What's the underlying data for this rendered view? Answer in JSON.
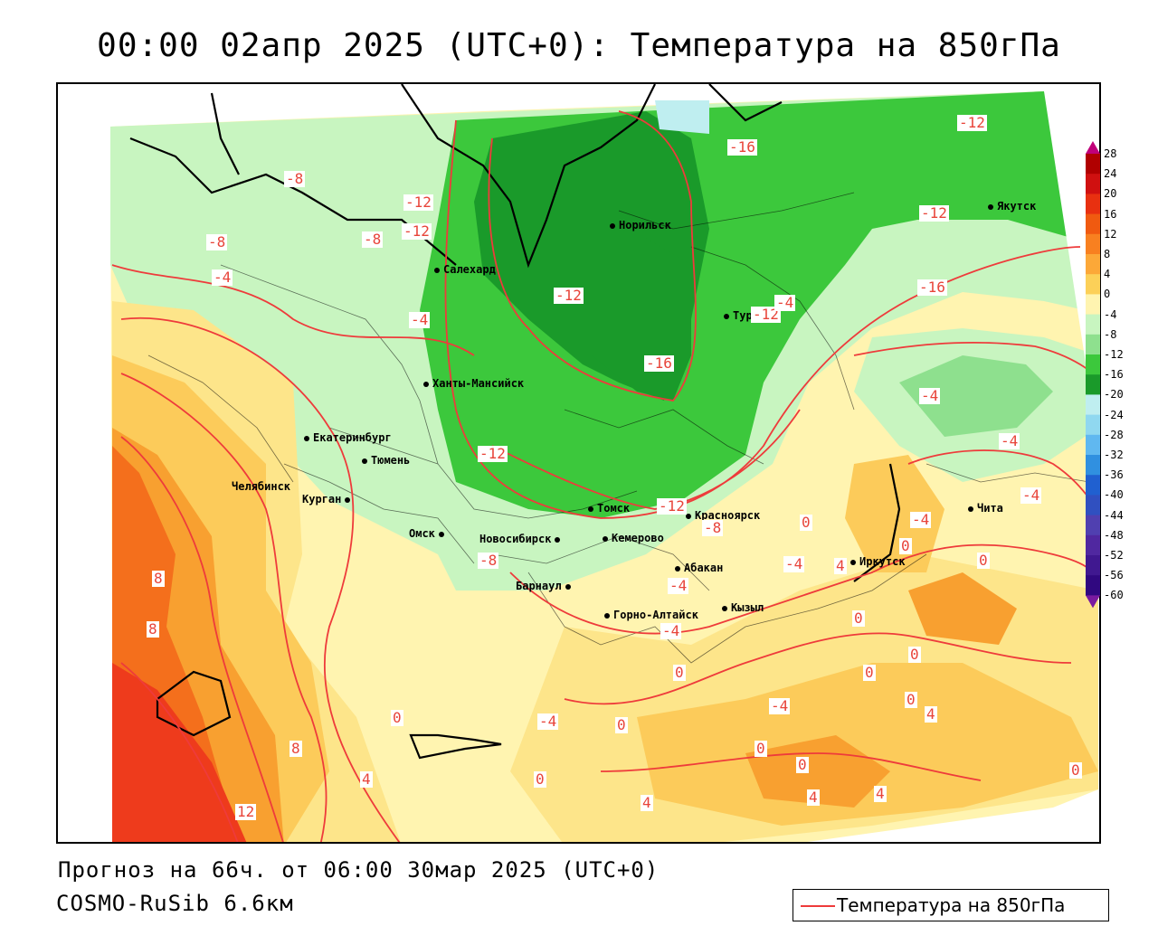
{
  "title": "00:00 02апр 2025 (UTC+0): Температура на 850гПа",
  "forecast_line": "Прогноз на 66ч. от 06:00 30мар 2025 (UTC+0)",
  "model_line": "COSMO-RuSib 6.6км",
  "legend_label": "Температура на 850гПа",
  "colors": {
    "contour": "#ee3b3b",
    "deep_green": "#1a9a2a",
    "green": "#3cc83c",
    "light_green": "#8ee08e",
    "pale_green": "#c8f5c0",
    "pale_yellow": "#fff4b0",
    "yellow": "#fde58a",
    "light_orange": "#fccb5a",
    "orange": "#f8a030",
    "dark_orange": "#f46f1c",
    "red": "#ee3b1c"
  },
  "colorbar": {
    "ticks": [
      "28",
      "24",
      "20",
      "16",
      "12",
      "8",
      "4",
      "0",
      "-4",
      "-8",
      "-12",
      "-16",
      "-20",
      "-24",
      "-28",
      "-32",
      "-36",
      "-40",
      "-44",
      "-48",
      "-52",
      "-56",
      "-60"
    ],
    "colors": [
      "#c0007a",
      "#b00000",
      "#d01010",
      "#e83010",
      "#f05a10",
      "#f88020",
      "#fca838",
      "#fcd058",
      "#fff4b0",
      "#c8f5c0",
      "#8ee08e",
      "#3cc83c",
      "#1a9a2a",
      "#bfeef0",
      "#90d8f0",
      "#60b8f0",
      "#3090e0",
      "#2060d0",
      "#3050c0",
      "#5040b0",
      "#5028a0",
      "#401890",
      "#300880",
      "#7a1aa0"
    ]
  },
  "cities": [
    {
      "name": "Норильск"
    },
    {
      "name": "Якутск"
    },
    {
      "name": "Салехард"
    },
    {
      "name": "Тура"
    },
    {
      "name": "Ханты-Мансийск"
    },
    {
      "name": "Екатеринбург"
    },
    {
      "name": "Тюмень"
    },
    {
      "name": "Челябинск"
    },
    {
      "name": "Курган"
    },
    {
      "name": "Омск"
    },
    {
      "name": "Новосибирск"
    },
    {
      "name": "Томск"
    },
    {
      "name": "Кемерово"
    },
    {
      "name": "Красноярск"
    },
    {
      "name": "Абакан"
    },
    {
      "name": "Барнаул"
    },
    {
      "name": "Горно-Алтайск"
    },
    {
      "name": "Кызыл"
    },
    {
      "name": "Иркутск"
    },
    {
      "name": "Чита"
    }
  ],
  "contour_labels": [
    "-12",
    "-16",
    "-12",
    "-8",
    "-12",
    "-12",
    "-8",
    "-12",
    "-4",
    "-8",
    "-4",
    "-16",
    "-12",
    "-4",
    "-16",
    "-8",
    "-4",
    "-12",
    "-4",
    "-8",
    "-12",
    "-4",
    "-4",
    "-4",
    "0",
    "-4",
    "4",
    "0",
    "0",
    "0",
    "0",
    "-4",
    "0",
    "0",
    "4",
    "0",
    "-4",
    "0",
    "0",
    "4",
    "0",
    "0",
    "4",
    "4",
    "8",
    "8",
    "8",
    "4",
    "12",
    "0",
    "-4",
    "0"
  ]
}
